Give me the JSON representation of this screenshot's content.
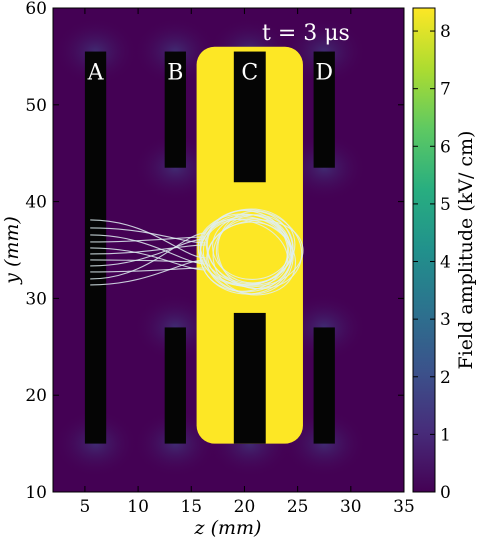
{
  "chart_data": {
    "type": "heatmap",
    "xlabel": "z (mm)",
    "ylabel": "y (mm)",
    "xlim": [
      2,
      35
    ],
    "ylim": [
      10,
      60
    ],
    "xticks": [
      "5",
      "10",
      "15",
      "20",
      "25",
      "30",
      "35"
    ],
    "yticks": [
      "10",
      "20",
      "30",
      "40",
      "50",
      "60"
    ],
    "annotation": "t = 3 μs",
    "colorbar": {
      "label": "Field amplitude (kV/ cm)",
      "min": 0,
      "max": 8.4,
      "ticks": [
        "0",
        "1",
        "2",
        "3",
        "4",
        "5",
        "6",
        "7",
        "8"
      ],
      "colormap": "viridis"
    },
    "electrodes": [
      {
        "label": "A",
        "segments": [
          {
            "z": [
              5,
              7
            ],
            "y": [
              15,
              55.5
            ]
          }
        ]
      },
      {
        "label": "B",
        "segments": [
          {
            "z": [
              12.5,
              14.5
            ],
            "y": [
              43.5,
              55.5
            ]
          },
          {
            "z": [
              12.5,
              14.5
            ],
            "y": [
              15,
              27
            ]
          }
        ]
      },
      {
        "label": "C",
        "segments": [
          {
            "z": [
              19,
              22
            ],
            "y": [
              42,
              55.5
            ]
          },
          {
            "z": [
              19,
              22
            ],
            "y": [
              15,
              28.5
            ]
          }
        ]
      },
      {
        "label": "D",
        "segments": [
          {
            "z": [
              26.5,
              28.5
            ],
            "y": [
              43.5,
              55.5
            ]
          },
          {
            "z": [
              26.5,
              28.5
            ],
            "y": [
              15,
              27
            ]
          }
        ]
      }
    ],
    "high_field_region": {
      "z": [
        15.5,
        25.5
      ],
      "y": [
        15,
        56
      ],
      "value": 8.4
    },
    "trajectories": {
      "z_start": 5.5,
      "z_center": 20.5,
      "y_center": 34.8,
      "radius_z": 4.5,
      "radius_y": 4
    }
  },
  "colors": {
    "viridis_low": "#440154",
    "viridis_high": "#fde725",
    "electrode": "#050505",
    "trajectory": "#dfeff2"
  }
}
